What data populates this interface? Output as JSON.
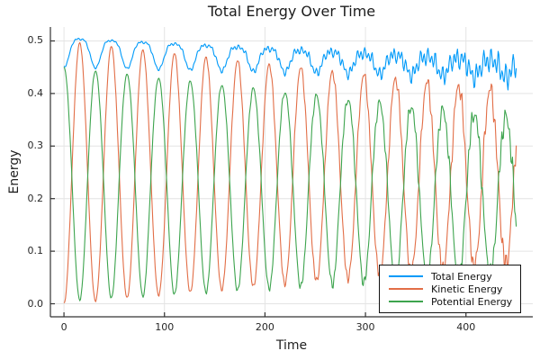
{
  "figure": {
    "background": "#ffffff",
    "grid_color": "#e4e4e4",
    "spine_color": "#333333",
    "tick_color": "#333333",
    "text_color": "#262626"
  },
  "legend": {
    "entries": [
      "Total Energy",
      "Kinetic Energy",
      "Potential Energy"
    ]
  },
  "chart_data": {
    "type": "line",
    "title": "Total Energy Over Time",
    "xlabel": "Time",
    "ylabel": "Energy",
    "xlim": [
      -13.5,
      466.5
    ],
    "ylim": [
      -0.0248,
      0.5265
    ],
    "x_ticks": [
      0,
      100,
      200,
      300,
      400
    ],
    "y_ticks": [
      0.0,
      0.1,
      0.2,
      0.3,
      0.4,
      0.5
    ],
    "y_tick_labels": [
      "0.0",
      "0.1",
      "0.2",
      "0.3",
      "0.4",
      "0.5"
    ],
    "grid": true,
    "legend_position": "bottom-right",
    "series": [
      {
        "name": "Total Energy",
        "color": "#009af9",
        "role": "total"
      },
      {
        "name": "Kinetic Energy",
        "color": "#e26e47",
        "role": "kinetic"
      },
      {
        "name": "Potential Energy",
        "color": "#3da44e",
        "role": "potential"
      }
    ],
    "description": "Energy exchange in a simulation: kinetic and potential energy oscillate in anti-phase (period ~31.4 time units); kinetic peaks ~0.5 decaying to ~0.40, minima rising 0 to ~0.08; potential starts at 0.45, peaks decaying to ~0.35. Total energy waves between 0.45 and 0.505 early, decaying to a noisy band around 0.43-0.46 by t=450; high-frequency jitter grows with time.",
    "generator": {
      "t_start": 0,
      "t_end": 450,
      "dt": 0.75,
      "omega": 0.2,
      "total_energy": {
        "peak_start": 0.505,
        "peak_end": 0.46,
        "dip_start": 0.055,
        "dip_end": 0.03
      },
      "kinetic_energy": {
        "mid_start": 0.25,
        "mid_end": 0.24,
        "amp_start": 0.25,
        "amp_end": 0.163
      },
      "noise": {
        "amp_start": 0.002,
        "amp_end": 0.03,
        "power": 2.2,
        "freqs": [
          1.7,
          2.3,
          0.9
        ],
        "weights": [
          1.0,
          0.7,
          0.5
        ],
        "norm": 2.2,
        "seeds": {
          "kinetic": 0.9,
          "potential": 2.6
        }
      }
    }
  }
}
